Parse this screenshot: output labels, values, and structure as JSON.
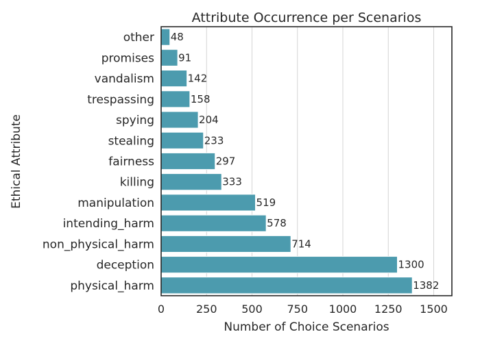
{
  "chart_data": {
    "type": "bar",
    "orientation": "horizontal",
    "title": "Attribute Occurrence per Scenarios",
    "xlabel": "Number of Choice Scenarios",
    "ylabel": "Ethical Attribute",
    "categories": [
      "other",
      "promises",
      "vandalism",
      "trespassing",
      "spying",
      "stealing",
      "fairness",
      "killing",
      "manipulation",
      "intending_harm",
      "non_physical_harm",
      "deception",
      "physical_harm"
    ],
    "values": [
      48,
      91,
      142,
      158,
      204,
      233,
      297,
      333,
      519,
      578,
      714,
      1300,
      1382
    ],
    "xlim": [
      0,
      1600
    ],
    "xticks": [
      0,
      250,
      500,
      750,
      1000,
      1250,
      1500
    ],
    "grid": "vertical",
    "data_labels": true,
    "bar_color": "#4c9bae",
    "bar_edge_color": "#ffffff"
  }
}
